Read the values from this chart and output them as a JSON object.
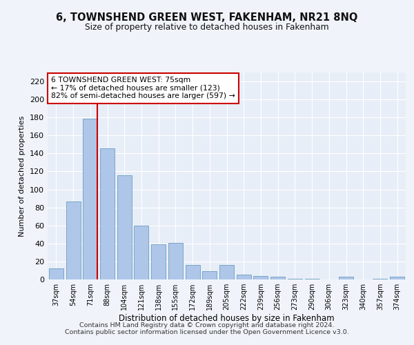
{
  "title1": "6, TOWNSHEND GREEN WEST, FAKENHAM, NR21 8NQ",
  "title2": "Size of property relative to detached houses in Fakenham",
  "xlabel": "Distribution of detached houses by size in Fakenham",
  "ylabel": "Number of detached properties",
  "categories": [
    "37sqm",
    "54sqm",
    "71sqm",
    "88sqm",
    "104sqm",
    "121sqm",
    "138sqm",
    "155sqm",
    "172sqm",
    "189sqm",
    "205sqm",
    "222sqm",
    "239sqm",
    "256sqm",
    "273sqm",
    "290sqm",
    "306sqm",
    "323sqm",
    "340sqm",
    "357sqm",
    "374sqm"
  ],
  "values": [
    12,
    87,
    179,
    146,
    116,
    60,
    39,
    41,
    16,
    9,
    16,
    5,
    4,
    3,
    1,
    1,
    0,
    3,
    0,
    1,
    3
  ],
  "bar_color": "#aec6e8",
  "bar_edgecolor": "#6b9dc2",
  "vline_x": 2.42,
  "vline_color": "#cc0000",
  "annotation_text": "6 TOWNSHEND GREEN WEST: 75sqm\n← 17% of detached houses are smaller (123)\n82% of semi-detached houses are larger (597) →",
  "annotation_box_edgecolor": "#cc0000",
  "ylim": [
    0,
    230
  ],
  "yticks": [
    0,
    20,
    40,
    60,
    80,
    100,
    120,
    140,
    160,
    180,
    200,
    220
  ],
  "footer1": "Contains HM Land Registry data © Crown copyright and database right 2024.",
  "footer2": "Contains public sector information licensed under the Open Government Licence v3.0.",
  "bg_color": "#e8eef7",
  "fig_bg_color": "#f0f4fa",
  "grid_color": "#ffffff"
}
